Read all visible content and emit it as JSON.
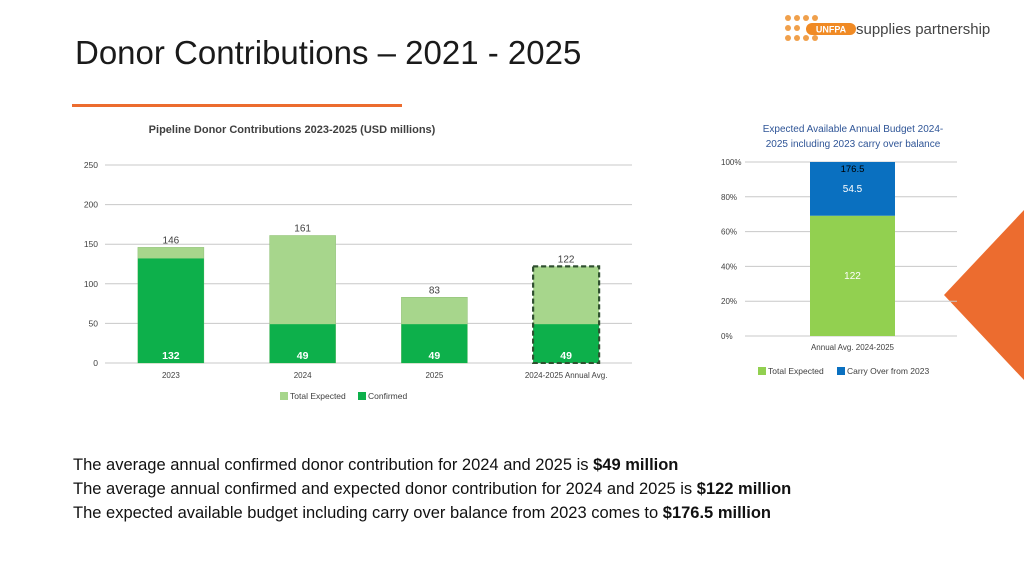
{
  "page": {
    "title": "Donor Contributions – 2021 - 2025",
    "logo_text": "supplies partnership",
    "logo_mark": "UNFPA",
    "notes": [
      {
        "text": "The average annual confirmed donor contribution for 2024 and 2025 is ",
        "bold": "$49 million"
      },
      {
        "text": "The average annual confirmed and expected donor contribution for 2024 and 2025 is ",
        "bold": "$122 million"
      },
      {
        "text": "The expected available budget including carry over balance from 2023 comes to ",
        "bold": "$176.5 million"
      }
    ]
  },
  "colors": {
    "orange": "#ec6c2f",
    "confirmed": "#0db04b",
    "total_expected": "#a7d68c",
    "total_expected_2": "#92d050",
    "carry_over": "#0a70c0",
    "grid": "#c8c8c8"
  },
  "chart_data": [
    {
      "type": "bar",
      "title": "Pipeline Donor Contributions 2023-2025 (USD millions)",
      "categories": [
        "2023",
        "2024",
        "2025",
        "2024-2025 Annual Avg."
      ],
      "series": [
        {
          "name": "Total Expected",
          "values": [
            146,
            161,
            83,
            122
          ]
        },
        {
          "name": "Confirmed",
          "values": [
            132,
            49,
            49,
            49
          ]
        }
      ],
      "yticks": [
        0,
        50,
        100,
        150,
        200,
        250
      ],
      "ylim": [
        0,
        250
      ],
      "highlight_category": "2024-2025 Annual Avg.",
      "legend": [
        "Total Expected",
        "Confirmed"
      ],
      "legend_position": "bottom"
    },
    {
      "type": "bar",
      "stacked": "percent",
      "title_lines": [
        "Expected Available Annual Budget 2024-",
        "2025 including 2023 carry over balance"
      ],
      "categories": [
        "Annual Avg. 2024-2025"
      ],
      "series": [
        {
          "name": "Total Expected",
          "values": [
            122
          ]
        },
        {
          "name": "Carry Over from 2023",
          "values": [
            54.5
          ]
        }
      ],
      "total_label": "176.5",
      "yticks": [
        "0%",
        "20%",
        "40%",
        "60%",
        "80%",
        "100%"
      ],
      "ylim": [
        0,
        100
      ],
      "legend": [
        "Total Expected",
        "Carry Over from 2023"
      ],
      "legend_position": "bottom"
    }
  ]
}
